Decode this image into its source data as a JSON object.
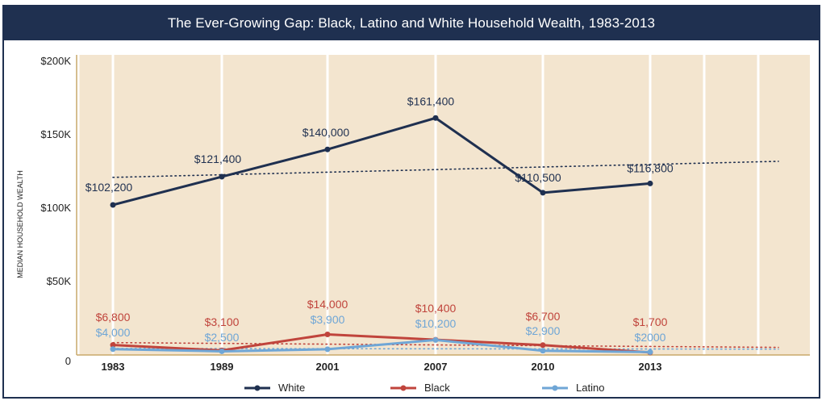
{
  "title": "The Ever-Growing Gap: Black, Latino and White Household Wealth, 1983-2013",
  "colors": {
    "header_bg": "#1f3050",
    "plot_bg": "#f3e5cf",
    "white_series": "#1f3050",
    "black_series": "#c0443c",
    "latino_series": "#6fa6d6"
  },
  "chart_data": {
    "type": "line",
    "title": "The Ever-Growing Gap: Black, Latino and White Household Wealth, 1983-2013",
    "ylabel": "MEDIAN HOUSEHOLD WEALTH",
    "xlabel": "",
    "categories": [
      "1983",
      "1989",
      "2001",
      "2007",
      "2010",
      "2013"
    ],
    "ylim": [
      0,
      200000
    ],
    "yticks": [
      {
        "value": 0,
        "label": "0"
      },
      {
        "value": 50000,
        "label": "$50K"
      },
      {
        "value": 100000,
        "label": "$100K"
      },
      {
        "value": 150000,
        "label": "$150K"
      },
      {
        "value": 200000,
        "label": "$200K"
      }
    ],
    "grid": "vertical",
    "legend_position": "bottom",
    "trendlines": true,
    "series": [
      {
        "name": "White",
        "values": [
          102200,
          121400,
          140000,
          161400,
          110500,
          116800
        ],
        "labels": [
          "$102,200",
          "$121,400",
          "$140,000",
          "$161,400",
          "$110,500",
          "$116,800"
        ]
      },
      {
        "name": "Black",
        "values": [
          6800,
          3100,
          14000,
          10400,
          6700,
          1700
        ],
        "labels": [
          "$6,800",
          "$3,100",
          "$14,000",
          "$10,400",
          "$6,700",
          "$1,700"
        ]
      },
      {
        "name": "Latino",
        "values": [
          4000,
          2500,
          3900,
          10200,
          2900,
          2000
        ],
        "labels": [
          "$4,000",
          "$2,500",
          "$3,900",
          "$10,200",
          "$2,900",
          "$2000"
        ]
      }
    ]
  }
}
